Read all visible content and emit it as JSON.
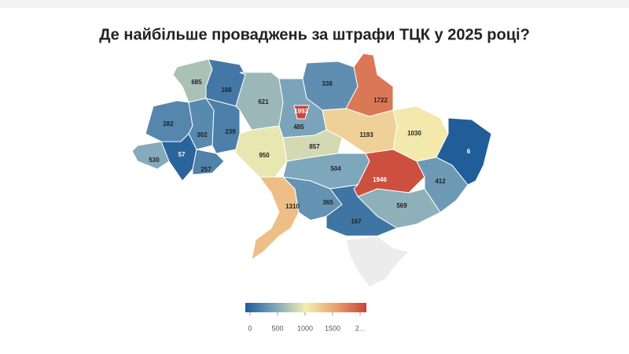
{
  "chart_data": {
    "type": "choropleth",
    "title": "Де найбільше проваджень за штрафи ТЦК у 2025 році?",
    "values": [
      685,
      188,
      621,
      485,
      1992,
      338,
      1722,
      282,
      302,
      239,
      57,
      530,
      257,
      950,
      857,
      1193,
      1030,
      6,
      504,
      1946,
      412,
      1310,
      365,
      569,
      167
    ],
    "colors": [
      "#1f5c99",
      "#7ea6bb",
      "#f4eeb0",
      "#e8a06c",
      "#c9453a"
    ],
    "clim": [
      0,
      2000
    ],
    "ticks": [
      0,
      500,
      1000,
      1500,
      {
        "value": 2000,
        "label": "2..."
      }
    ]
  }
}
